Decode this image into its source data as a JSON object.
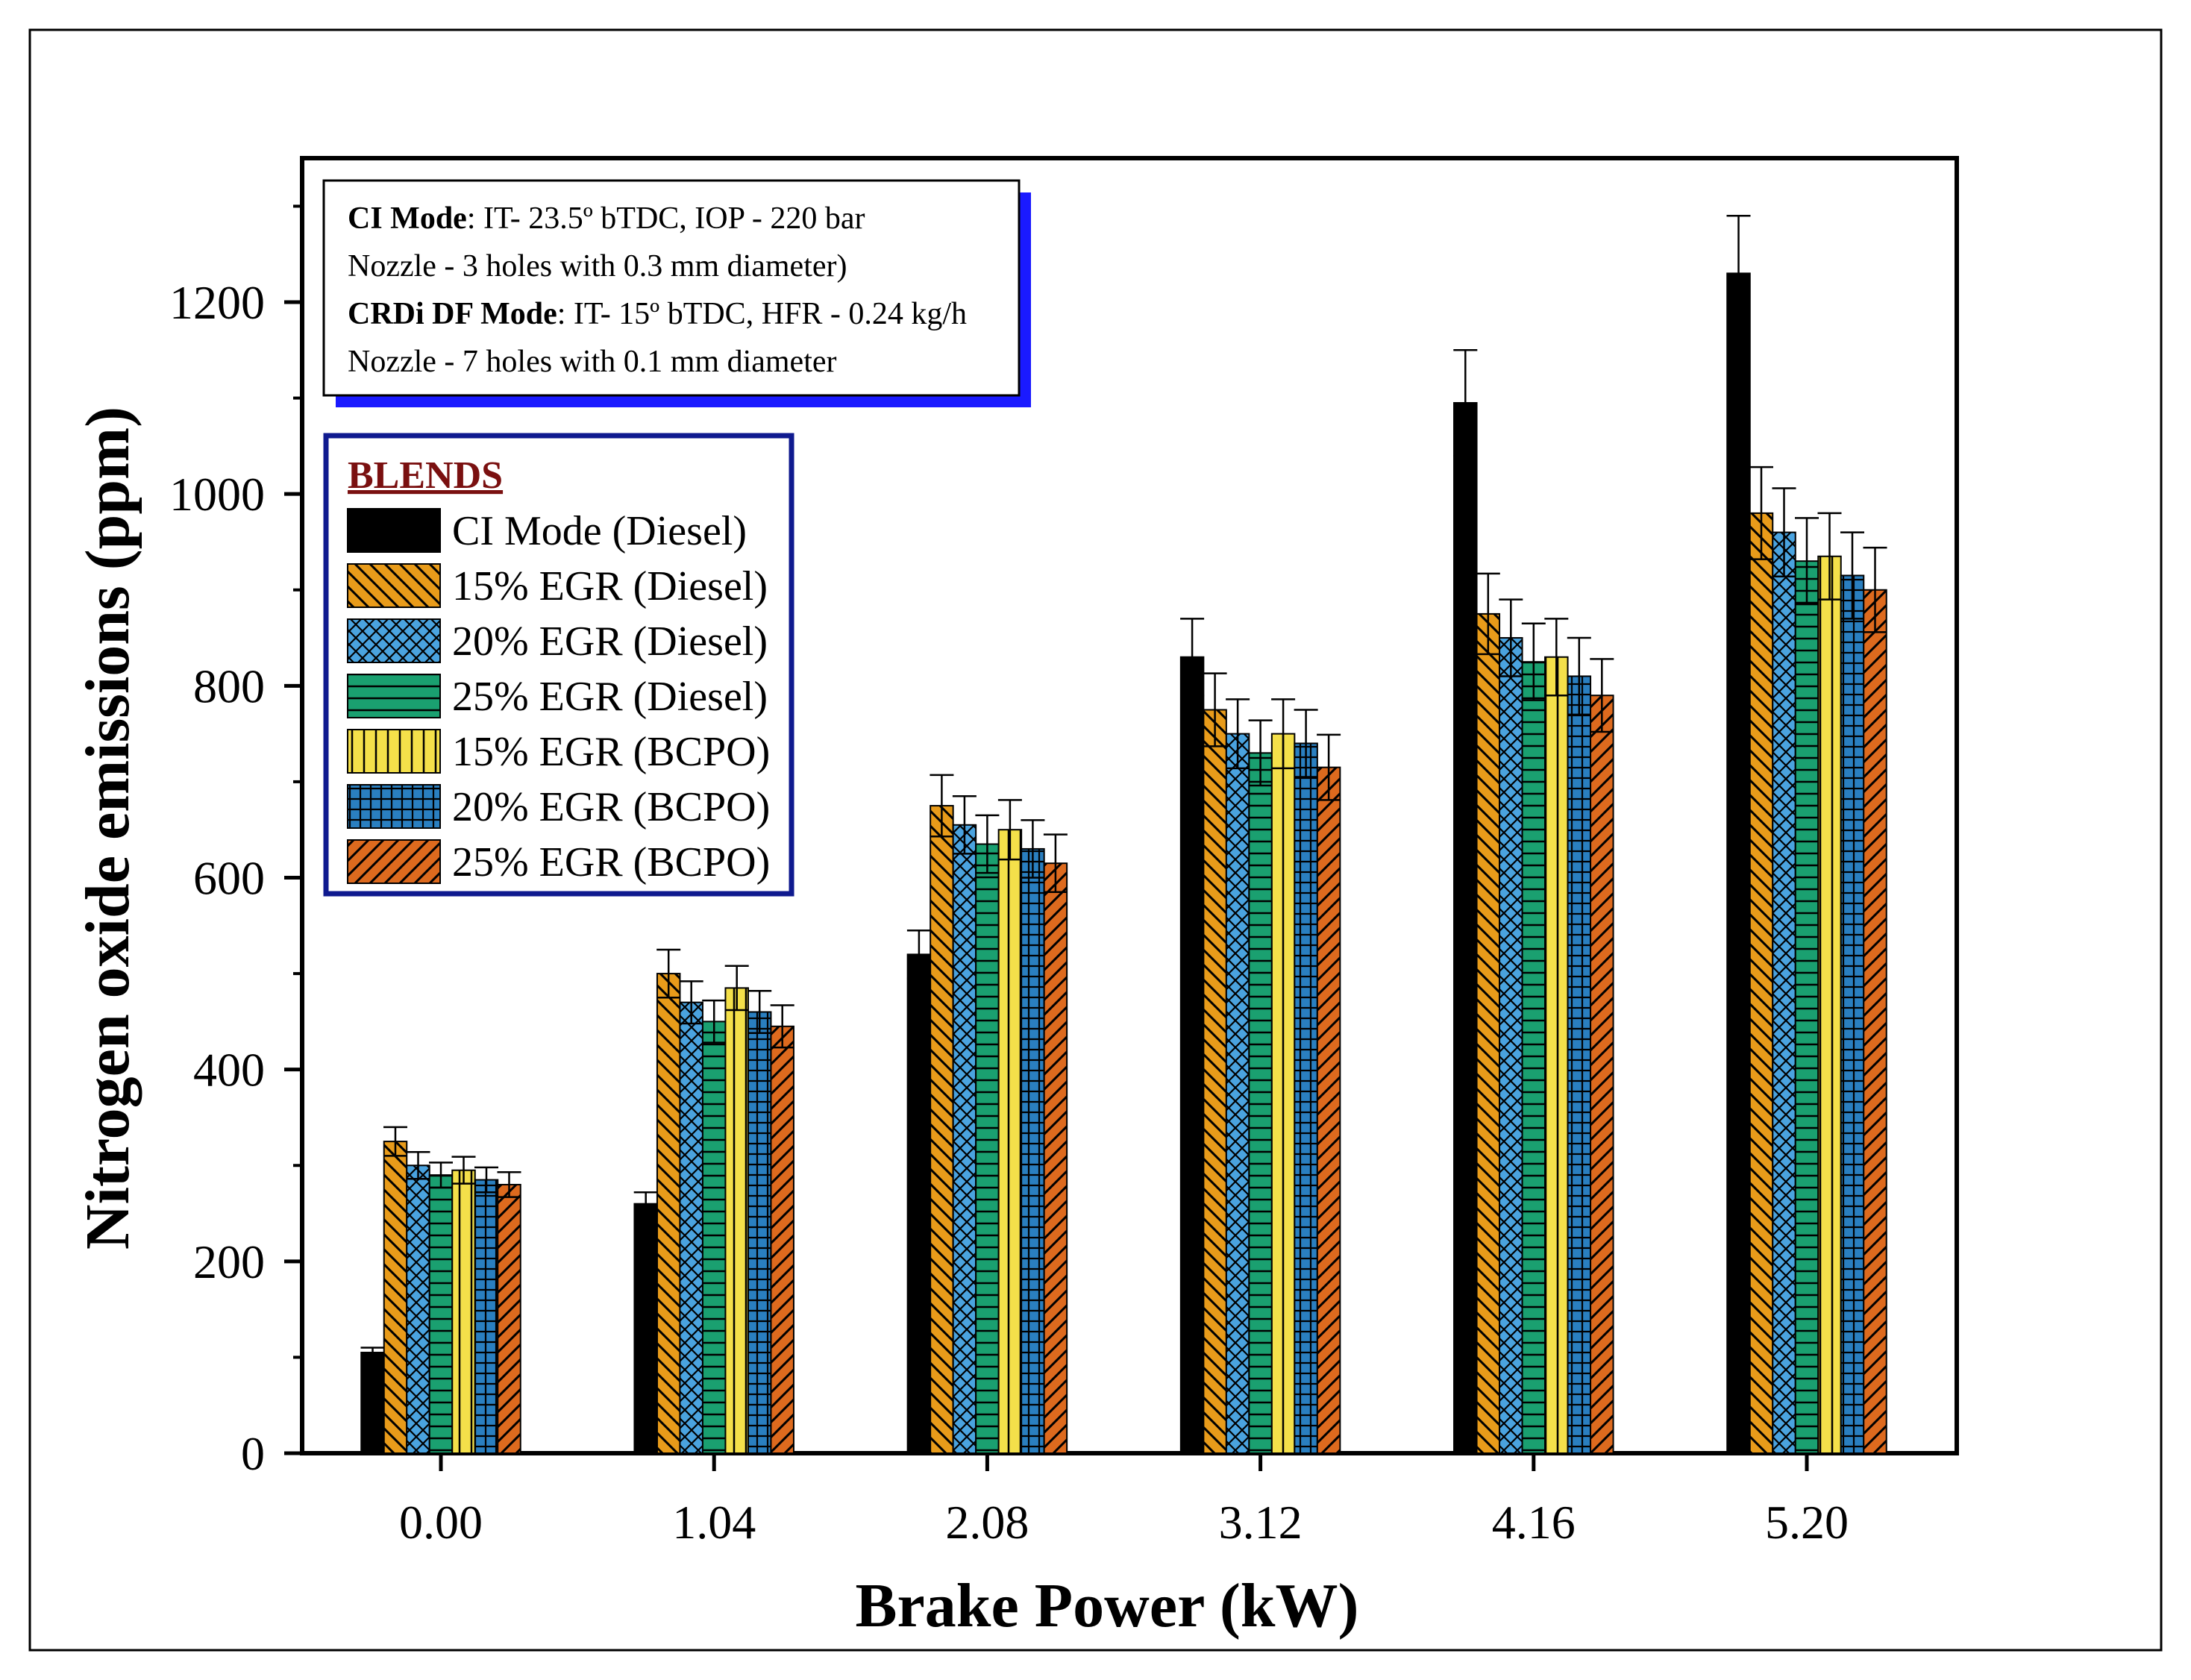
{
  "chart_data": {
    "type": "bar",
    "xlabel": "Brake Power (kW)",
    "ylabel": "Nitrogen oxide emissions (ppm)",
    "ylim": [
      0,
      1350
    ],
    "yticks": [
      "0",
      "200",
      "400",
      "600",
      "800",
      "1000",
      "1200"
    ],
    "ytick_values": [
      0,
      200,
      400,
      600,
      800,
      1000,
      1200
    ],
    "categories": [
      "0.00",
      "1.04",
      "2.08",
      "3.12",
      "4.16",
      "5.20"
    ],
    "legend_title": "BLENDS",
    "series": [
      {
        "name": "CI Mode (Diesel)",
        "color": "#000000",
        "pattern": "solid",
        "values": [
          105,
          260,
          520,
          830,
          1095,
          1230
        ],
        "errors": [
          5,
          12,
          25,
          40,
          55,
          60
        ]
      },
      {
        "name": "15% EGR (Diesel)",
        "color": "#e89b1a",
        "pattern": "diag-back",
        "values": [
          325,
          500,
          675,
          775,
          875,
          980
        ],
        "errors": [
          15,
          25,
          32,
          38,
          42,
          48
        ]
      },
      {
        "name": "20% EGR (Diesel)",
        "color": "#4aa3df",
        "pattern": "crosshatch",
        "values": [
          300,
          470,
          655,
          750,
          850,
          960
        ],
        "errors": [
          14,
          22,
          30,
          36,
          40,
          46
        ]
      },
      {
        "name": "25% EGR (Diesel)",
        "color": "#1aa070",
        "pattern": "horizontal",
        "values": [
          290,
          450,
          635,
          730,
          825,
          930
        ],
        "errors": [
          13,
          22,
          30,
          34,
          40,
          45
        ]
      },
      {
        "name": "15% EGR (BCPO)",
        "color": "#f4e04a",
        "pattern": "vertical",
        "values": [
          295,
          485,
          650,
          750,
          830,
          935
        ],
        "errors": [
          14,
          23,
          31,
          36,
          40,
          45
        ]
      },
      {
        "name": "20% EGR (BCPO)",
        "color": "#2a7fc0",
        "pattern": "grid",
        "values": [
          285,
          460,
          630,
          740,
          810,
          915
        ],
        "errors": [
          13,
          22,
          30,
          35,
          40,
          45
        ]
      },
      {
        "name": "25% EGR (BCPO)",
        "color": "#dd6a1e",
        "pattern": "diag-fwd",
        "values": [
          280,
          445,
          615,
          715,
          790,
          900
        ],
        "errors": [
          13,
          22,
          30,
          34,
          38,
          44
        ]
      }
    ]
  },
  "info_box": {
    "line1_bold": "CI Mode",
    "line1_rest": ": IT- 23.5º bTDC, IOP - 220 bar",
    "line2": "Nozzle - 3 holes with 0.3 mm diameter)",
    "line3_bold": "CRDi DF Mode",
    "line3_rest": ": IT- 15º bTDC, HFR - 0.24 kg/h",
    "line4": "Nozzle - 7 holes with 0.1 mm diameter"
  }
}
